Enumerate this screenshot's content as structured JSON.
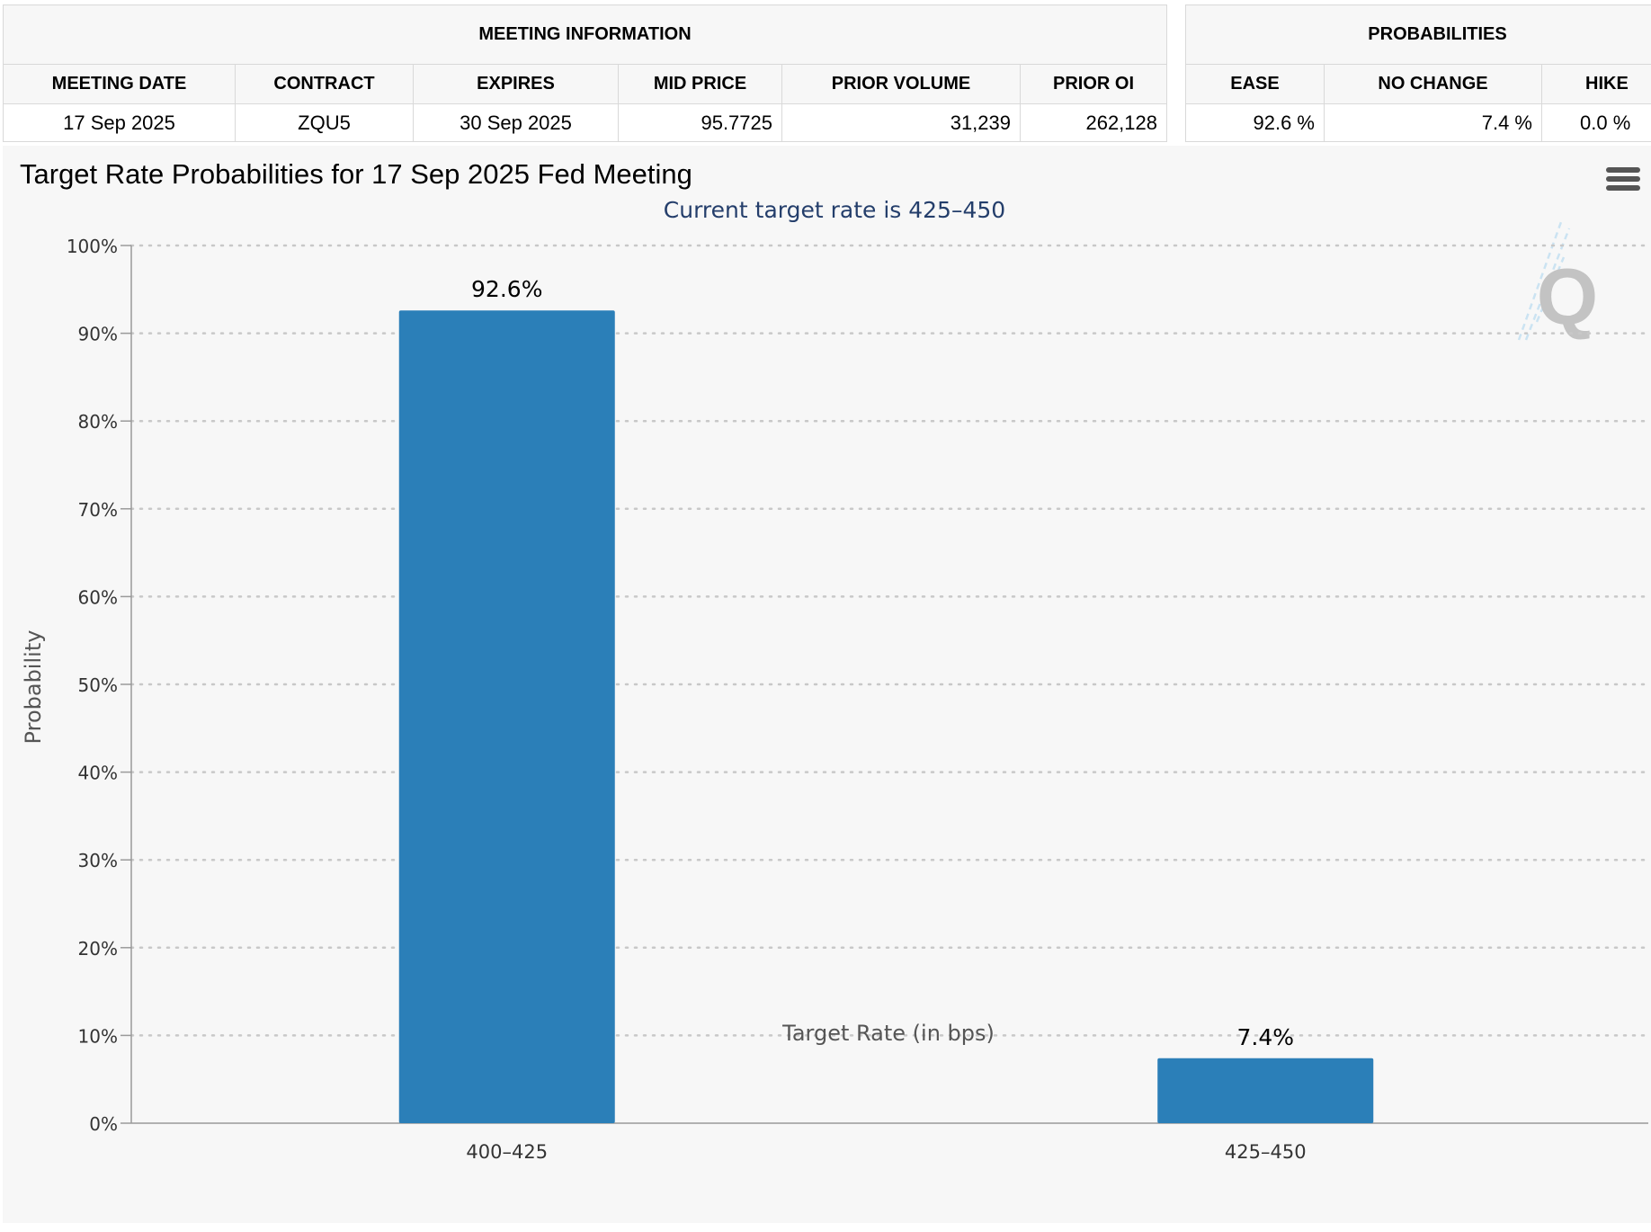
{
  "meeting_info": {
    "group_title": "MEETING INFORMATION",
    "headers": [
      "MEETING DATE",
      "CONTRACT",
      "EXPIRES",
      "MID PRICE",
      "PRIOR VOLUME",
      "PRIOR OI"
    ],
    "row": {
      "meeting_date": "17 Sep 2025",
      "contract": "ZQU5",
      "expires": "30 Sep 2025",
      "mid_price": "95.7725",
      "prior_volume": "31,239",
      "prior_oi": "262,128"
    }
  },
  "probabilities": {
    "group_title": "PROBABILITIES",
    "headers": [
      "EASE",
      "NO CHANGE",
      "HIKE"
    ],
    "row": {
      "ease": "92.6 %",
      "no_change": "7.4 %",
      "hike": "0.0 %"
    }
  },
  "chart_data": {
    "type": "bar",
    "title": "Target Rate Probabilities for 17 Sep 2025 Fed Meeting",
    "subtitle": "Current target rate is 425–450",
    "categories": [
      "400–425",
      "425–450"
    ],
    "values": [
      92.6,
      7.4
    ],
    "data_labels": [
      "92.6%",
      "7.4%"
    ],
    "xlabel": "Target Rate (in bps)",
    "ylabel": "Probability",
    "ylim": [
      0,
      100
    ],
    "yticks": [
      0,
      10,
      20,
      30,
      40,
      50,
      60,
      70,
      80,
      90,
      100
    ],
    "ytick_labels": [
      "0%",
      "10%",
      "20%",
      "30%",
      "40%",
      "50%",
      "60%",
      "70%",
      "80%",
      "90%",
      "100%"
    ],
    "grid": true,
    "bar_color": "#2b7fb8",
    "subtitle_color": "#243e6b"
  },
  "watermark": {
    "letter": "Q"
  },
  "icons": {
    "menu": "menu-icon"
  }
}
